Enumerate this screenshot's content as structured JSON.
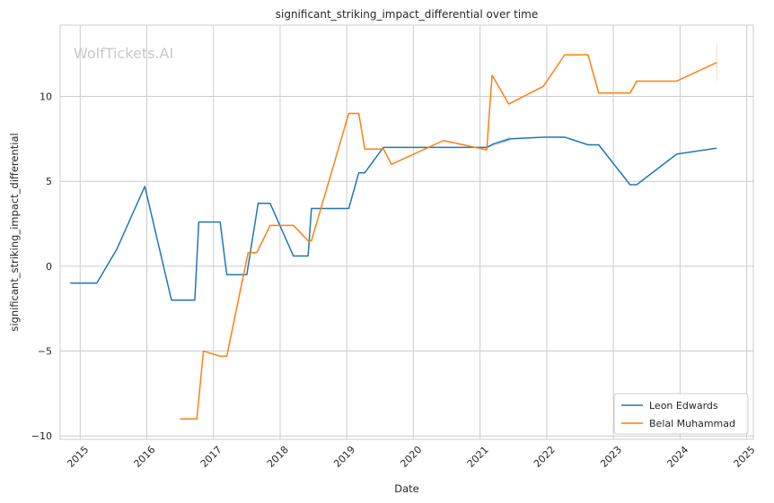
{
  "chart_data": {
    "type": "line",
    "title": "significant_striking_impact_differential over time",
    "xlabel": "Date",
    "ylabel": "significant_striking_impact_differential",
    "watermark": "WolfTickets.AI",
    "xlim": [
      2014.7,
      2025.1
    ],
    "ylim": [
      -10.2,
      14.2
    ],
    "x_ticks": [
      2015,
      2016,
      2017,
      2018,
      2019,
      2020,
      2021,
      2022,
      2023,
      2024,
      2025
    ],
    "x_tick_labels": [
      "2015",
      "2016",
      "2017",
      "2018",
      "2019",
      "2020",
      "2021",
      "2022",
      "2023",
      "2024",
      "2025"
    ],
    "y_ticks": [
      -10,
      -5,
      0,
      5,
      10
    ],
    "y_tick_labels": [
      "−10",
      "−5",
      "0",
      "5",
      "10"
    ],
    "grid": true,
    "legend_position": "bottom-right",
    "series": [
      {
        "name": "Leon Edwards",
        "color": "#1f77b4",
        "x": [
          2014.85,
          2015.25,
          2015.55,
          2015.97,
          2016.37,
          2016.72,
          2016.78,
          2017.1,
          2017.2,
          2017.5,
          2017.67,
          2017.85,
          2018.2,
          2018.42,
          2018.47,
          2019.03,
          2019.18,
          2019.27,
          2019.55,
          2020.45,
          2021.1,
          2021.2,
          2021.45,
          2021.95,
          2022.27,
          2022.62,
          2022.78,
          2023.25,
          2023.35,
          2023.95,
          2024.55
        ],
        "y": [
          -1.0,
          -1.0,
          1.0,
          4.7,
          -2.0,
          -2.0,
          2.6,
          2.6,
          -0.5,
          -0.5,
          3.7,
          3.7,
          0.6,
          0.6,
          3.4,
          3.4,
          5.5,
          5.5,
          7.0,
          7.0,
          7.0,
          7.2,
          7.5,
          7.6,
          7.6,
          7.15,
          7.15,
          4.8,
          4.8,
          6.6,
          6.95
        ]
      },
      {
        "name": "Belal Muhammad",
        "color": "#ff7f0e",
        "x": [
          2016.5,
          2016.75,
          2016.85,
          2017.1,
          2017.2,
          2017.52,
          2017.65,
          2017.85,
          2018.2,
          2018.42,
          2018.47,
          2019.03,
          2019.18,
          2019.27,
          2019.55,
          2019.67,
          2020.45,
          2021.1,
          2021.18,
          2021.43,
          2021.95,
          2022.27,
          2022.62,
          2022.78,
          2023.25,
          2023.35,
          2023.95,
          2024.55
        ],
        "y": [
          -9.0,
          -9.0,
          -5.0,
          -5.3,
          -5.3,
          0.8,
          0.8,
          2.4,
          2.4,
          1.5,
          1.5,
          9.0,
          9.0,
          6.9,
          6.9,
          6.0,
          7.4,
          6.85,
          11.25,
          9.55,
          10.6,
          12.45,
          12.45,
          10.2,
          10.2,
          10.9,
          10.9,
          12.0
        ]
      }
    ]
  }
}
